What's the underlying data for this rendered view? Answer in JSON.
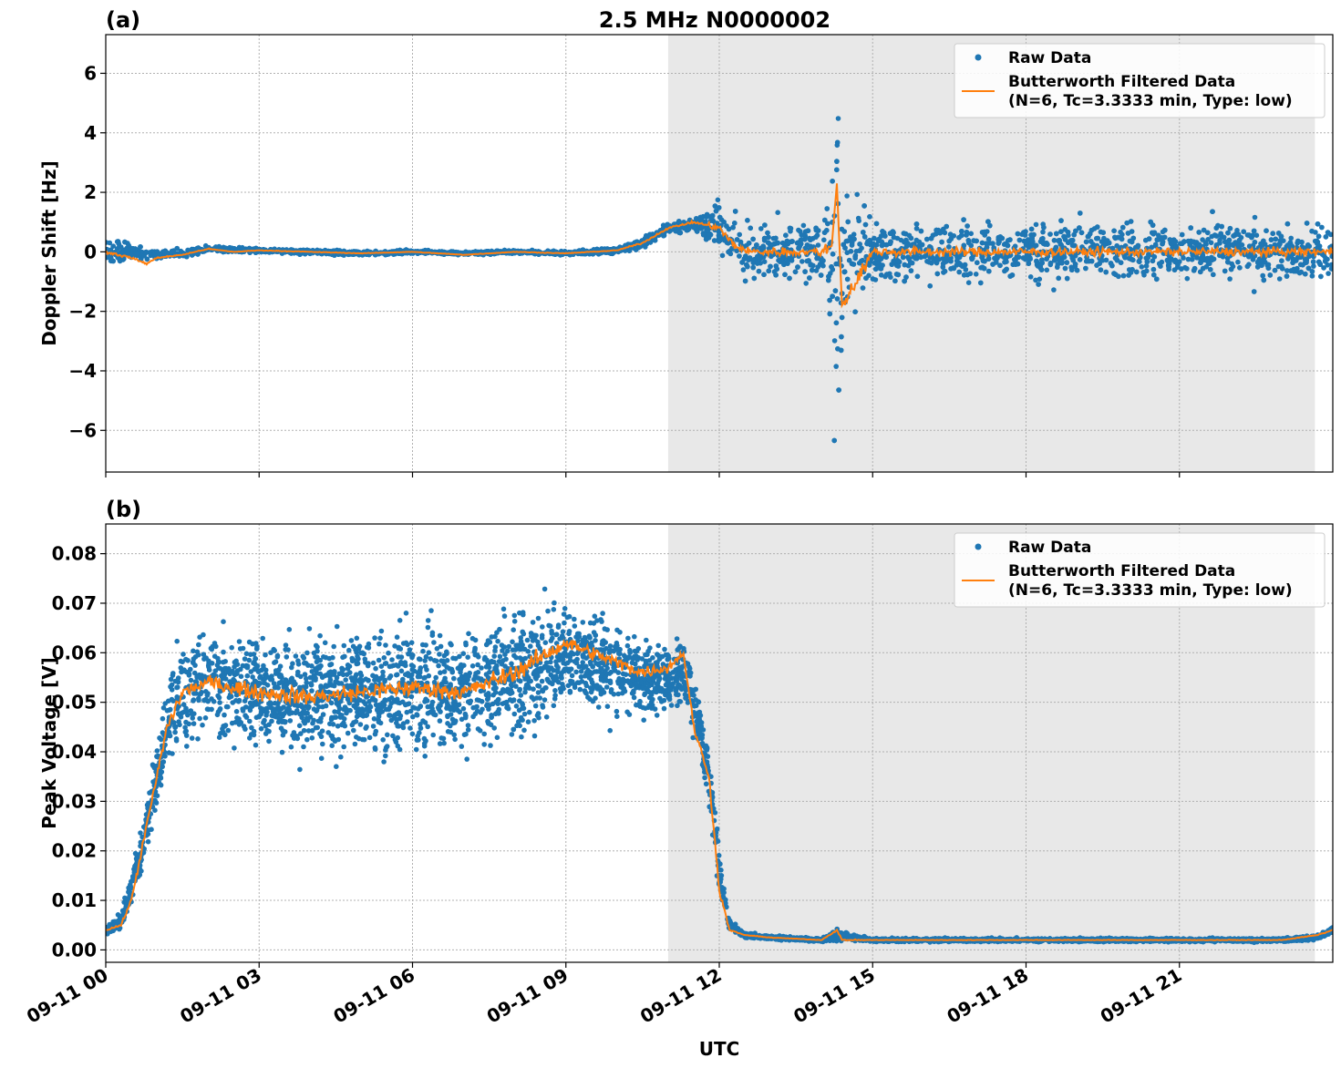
{
  "title": "2.5 MHz N0000002",
  "xlabel": "UTC",
  "colors": {
    "raw": "#1f77b4",
    "filtered": "#ff7f0e",
    "night_shade": "#e8e8e8",
    "grid": "#b0b0b0"
  },
  "chart_data": [
    {
      "type": "scatter",
      "panel_label": "(a)",
      "title": "2.5 MHz N0000002",
      "xlabel": "",
      "ylabel": "Doppler Shift [Hz]",
      "xlim_hours": [
        0,
        24
      ],
      "ylim": [
        -7.4,
        7.3
      ],
      "yticks": [
        -6,
        -4,
        -2,
        0,
        2,
        4,
        6
      ],
      "yticklabels": [
        "−6",
        "−4",
        "−2",
        "0",
        "2",
        "4",
        "6"
      ],
      "grid": true,
      "legend_placement": "top-right",
      "shaded_region_hours": [
        11.0,
        23.65
      ],
      "series": [
        {
          "name": "Raw Data",
          "kind": "points",
          "x_hours": [
            0,
            0.5,
            1,
            1.5,
            2,
            3,
            4,
            5,
            6,
            7,
            8,
            9,
            10,
            10.5,
            11,
            11.5,
            12,
            12.5,
            13,
            14,
            14.3,
            15,
            16,
            17,
            18,
            19,
            20,
            21,
            22,
            23,
            24
          ],
          "center": [
            0,
            0,
            -0.1,
            -0.05,
            0.1,
            0.05,
            0,
            -0.05,
            0,
            -0.05,
            0,
            -0.05,
            0.05,
            0.3,
            0.8,
            0.9,
            0.8,
            0,
            0,
            0,
            0.1,
            0,
            0,
            0,
            0,
            0,
            0,
            0,
            0,
            0,
            0
          ],
          "spread": [
            0.8,
            0.5,
            0.3,
            0.25,
            0.2,
            0.15,
            0.15,
            0.15,
            0.12,
            0.12,
            0.12,
            0.15,
            0.2,
            0.35,
            0.4,
            0.5,
            1.6,
            1.9,
            2.0,
            1.9,
            6.5,
            2.0,
            2.0,
            2.0,
            2.0,
            2.0,
            2.0,
            2.0,
            2.0,
            1.9,
            1.8
          ]
        },
        {
          "name": "Butterworth Filtered Data\n(N=6, Tc=3.3333 min, Type: low)",
          "legend_line1": "Butterworth Filtered Data",
          "legend_line2": "(N=6, Tc=3.3333 min, Type: low)",
          "kind": "line",
          "x_hours": [
            0,
            0.5,
            0.8,
            1,
            1.5,
            2,
            2.5,
            3,
            4,
            5,
            6,
            7,
            8,
            9,
            10,
            10.5,
            11,
            11.5,
            12,
            12.3,
            12.6,
            13,
            14,
            14.2,
            14.3,
            14.4,
            15,
            16,
            17,
            18,
            19,
            20,
            21,
            22,
            23,
            24
          ],
          "values": [
            0,
            -0.2,
            -0.4,
            -0.2,
            -0.1,
            0.1,
            0,
            0.05,
            0,
            -0.05,
            0,
            -0.1,
            0,
            -0.05,
            0.05,
            0.3,
            0.8,
            1.0,
            0.8,
            0.2,
            0,
            0,
            0,
            0.2,
            2.3,
            -1.8,
            0,
            0,
            0,
            0,
            0,
            0,
            0,
            0,
            0,
            0
          ]
        }
      ]
    },
    {
      "type": "scatter",
      "panel_label": "(b)",
      "title": "",
      "xlabel": "UTC",
      "ylabel": "Peak Voltage [V]",
      "xlim_hours": [
        0,
        24
      ],
      "ylim": [
        -0.0025,
        0.086
      ],
      "yticks": [
        0,
        0.01,
        0.02,
        0.03,
        0.04,
        0.05,
        0.06,
        0.07,
        0.08
      ],
      "yticklabels": [
        "0.00",
        "0.01",
        "0.02",
        "0.03",
        "0.04",
        "0.05",
        "0.06",
        "0.07",
        "0.08"
      ],
      "xticks_hours": [
        0,
        3,
        6,
        9,
        12,
        15,
        18,
        21
      ],
      "xticklabels": [
        "09-11 00",
        "09-11 03",
        "09-11 06",
        "09-11 09",
        "09-11 12",
        "09-11 15",
        "09-11 18",
        "09-11 21"
      ],
      "grid": true,
      "legend_placement": "top-right",
      "shaded_region_hours": [
        11.0,
        23.65
      ],
      "series": [
        {
          "name": "Raw Data",
          "kind": "points",
          "x_hours": [
            0,
            0.3,
            0.5,
            0.7,
            1,
            1.2,
            1.5,
            2,
            3,
            4,
            5,
            6,
            7,
            8,
            9,
            10,
            10.5,
            11,
            11.3,
            11.5,
            11.8,
            12,
            12.2,
            12.5,
            13,
            14,
            14.3,
            15,
            16,
            17,
            18,
            19,
            20,
            21,
            22,
            23,
            23.7,
            24
          ],
          "center": [
            0.004,
            0.006,
            0.012,
            0.02,
            0.035,
            0.045,
            0.052,
            0.054,
            0.052,
            0.051,
            0.052,
            0.053,
            0.052,
            0.055,
            0.06,
            0.057,
            0.055,
            0.055,
            0.056,
            0.05,
            0.035,
            0.015,
            0.005,
            0.003,
            0.0025,
            0.002,
            0.003,
            0.002,
            0.002,
            0.002,
            0.002,
            0.002,
            0.002,
            0.002,
            0.002,
            0.002,
            0.0025,
            0.004
          ],
          "spread": [
            0.002,
            0.003,
            0.006,
            0.01,
            0.014,
            0.018,
            0.02,
            0.02,
            0.022,
            0.024,
            0.025,
            0.025,
            0.024,
            0.025,
            0.02,
            0.018,
            0.016,
            0.014,
            0.012,
            0.012,
            0.01,
            0.008,
            0.002,
            0.001,
            0.0008,
            0.0007,
            0.002,
            0.0007,
            0.0007,
            0.0007,
            0.0007,
            0.0007,
            0.0007,
            0.0007,
            0.0007,
            0.0008,
            0.001,
            0.0015
          ]
        },
        {
          "name": "Butterworth Filtered Data\n(N=6, Tc=3.3333 min, Type: low)",
          "legend_line1": "Butterworth Filtered Data",
          "legend_line2": "(N=6, Tc=3.3333 min, Type: low)",
          "kind": "line",
          "x_hours": [
            0,
            0.3,
            0.5,
            0.7,
            1,
            1.2,
            1.5,
            2,
            3,
            4,
            5,
            6,
            7,
            8,
            9,
            10,
            10.5,
            11,
            11.3,
            11.5,
            11.8,
            12,
            12.2,
            12.5,
            13,
            14,
            14.3,
            14.4,
            15,
            16,
            17,
            18,
            19,
            20,
            21,
            22,
            23,
            23.7,
            24
          ],
          "values": [
            0.004,
            0.005,
            0.01,
            0.02,
            0.035,
            0.045,
            0.052,
            0.054,
            0.052,
            0.051,
            0.052,
            0.053,
            0.052,
            0.056,
            0.062,
            0.058,
            0.056,
            0.057,
            0.06,
            0.045,
            0.035,
            0.012,
            0.004,
            0.003,
            0.0025,
            0.002,
            0.004,
            0.002,
            0.002,
            0.002,
            0.002,
            0.002,
            0.002,
            0.002,
            0.002,
            0.002,
            0.002,
            0.003,
            0.004
          ]
        }
      ]
    }
  ]
}
